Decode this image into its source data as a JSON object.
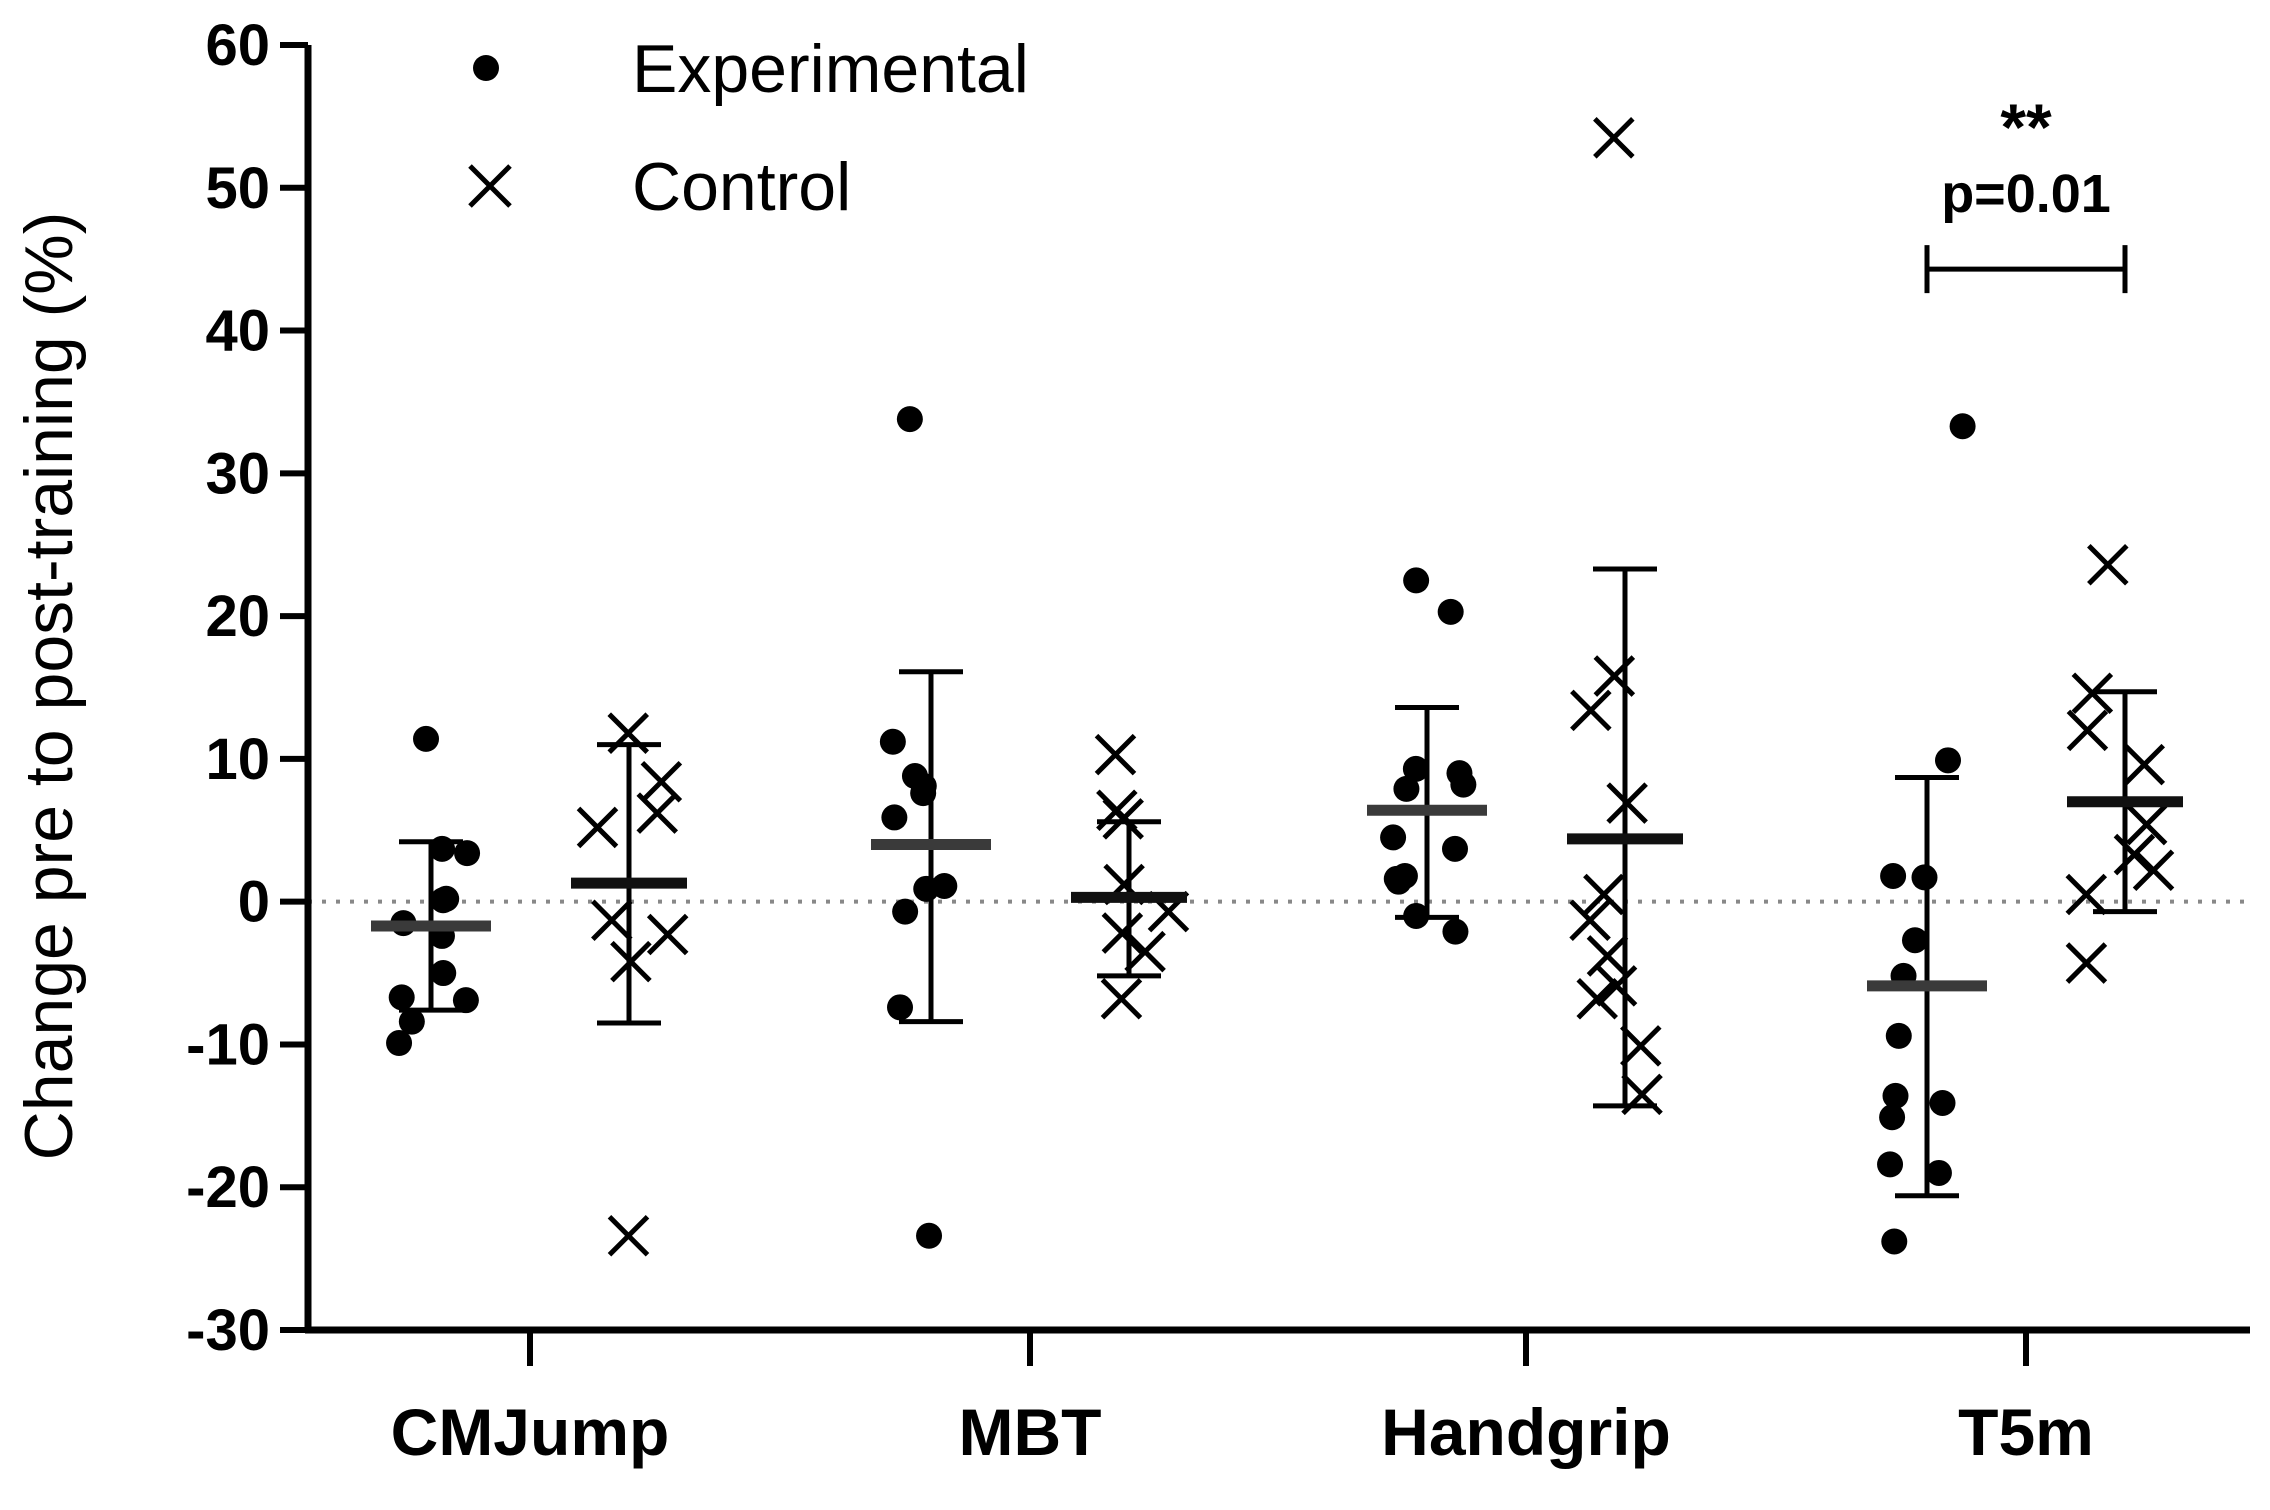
{
  "chart_data": {
    "type": "scatter",
    "title": "",
    "xlabel": "",
    "ylabel": "Change pre to post-training (%)",
    "ylim": [
      -30,
      60
    ],
    "yticks": [
      "60",
      "50",
      "40",
      "30",
      "20",
      "10",
      "0",
      "-10",
      "-20",
      "-30"
    ],
    "reference_line": 0,
    "categories": [
      "CMJump",
      "MBT",
      "Handgrip",
      "T5m"
    ],
    "legend_position": "top-left",
    "series": [
      {
        "name": "Experimental",
        "marker": "dot",
        "groups": [
          {
            "category": "CMJump",
            "mean": -1.7,
            "sd_upper": 4.2,
            "sd_lower": -7.6,
            "values": [
              11.4,
              3.7,
              3.4,
              0.1,
              0.2,
              -1.5,
              -2.4,
              -5.0,
              -6.7,
              -6.9,
              -8.4,
              -9.9
            ]
          },
          {
            "category": "MBT",
            "mean": 4.0,
            "sd_upper": 16.1,
            "sd_lower": -8.4,
            "values": [
              33.8,
              11.2,
              8.8,
              7.6,
              8.1,
              5.9,
              1.1,
              0.9,
              -0.7,
              -7.4,
              -23.4
            ]
          },
          {
            "category": "Handgrip",
            "mean": 6.4,
            "sd_upper": 13.6,
            "sd_lower": -1.1,
            "values": [
              22.5,
              20.3,
              9.3,
              9.0,
              8.2,
              7.9,
              4.5,
              3.7,
              1.6,
              1.4,
              1.8,
              -1.0,
              -2.1
            ]
          },
          {
            "category": "T5m",
            "mean": -5.9,
            "sd_upper": 8.7,
            "sd_lower": -20.6,
            "values": [
              33.3,
              9.9,
              1.8,
              1.7,
              -2.7,
              -5.2,
              -9.4,
              -13.6,
              -14.1,
              -15.1,
              -18.4,
              -19.0,
              -23.8
            ]
          }
        ]
      },
      {
        "name": "Control",
        "marker": "cross",
        "groups": [
          {
            "category": "CMJump",
            "mean": 1.3,
            "sd_upper": 11.0,
            "sd_lower": -8.5,
            "values": [
              11.8,
              8.4,
              6.2,
              5.2,
              -1.3,
              -2.3,
              -4.2,
              -23.4
            ]
          },
          {
            "category": "MBT",
            "mean": 0.3,
            "sd_upper": 5.6,
            "sd_lower": -5.2,
            "values": [
              10.3,
              6.4,
              5.8,
              1.2,
              -0.7,
              -2.2,
              -3.5,
              -6.8
            ]
          },
          {
            "category": "Handgrip",
            "mean": 4.4,
            "sd_upper": 23.3,
            "sd_lower": -14.3,
            "values": [
              53.5,
              15.8,
              13.4,
              6.9,
              0.5,
              -1.3,
              -3.8,
              -5.9,
              -6.8,
              -10.1,
              -13.5
            ]
          },
          {
            "category": "T5m",
            "mean": 7.0,
            "sd_upper": 14.7,
            "sd_lower": -0.7,
            "values": [
              23.6,
              14.6,
              12.0,
              9.6,
              5.4,
              3.3,
              2.2,
              0.5,
              -4.3
            ]
          }
        ]
      }
    ],
    "annotation": {
      "category": "T5m",
      "stars": "**",
      "text": "p=0.01",
      "y": 44.3
    }
  }
}
